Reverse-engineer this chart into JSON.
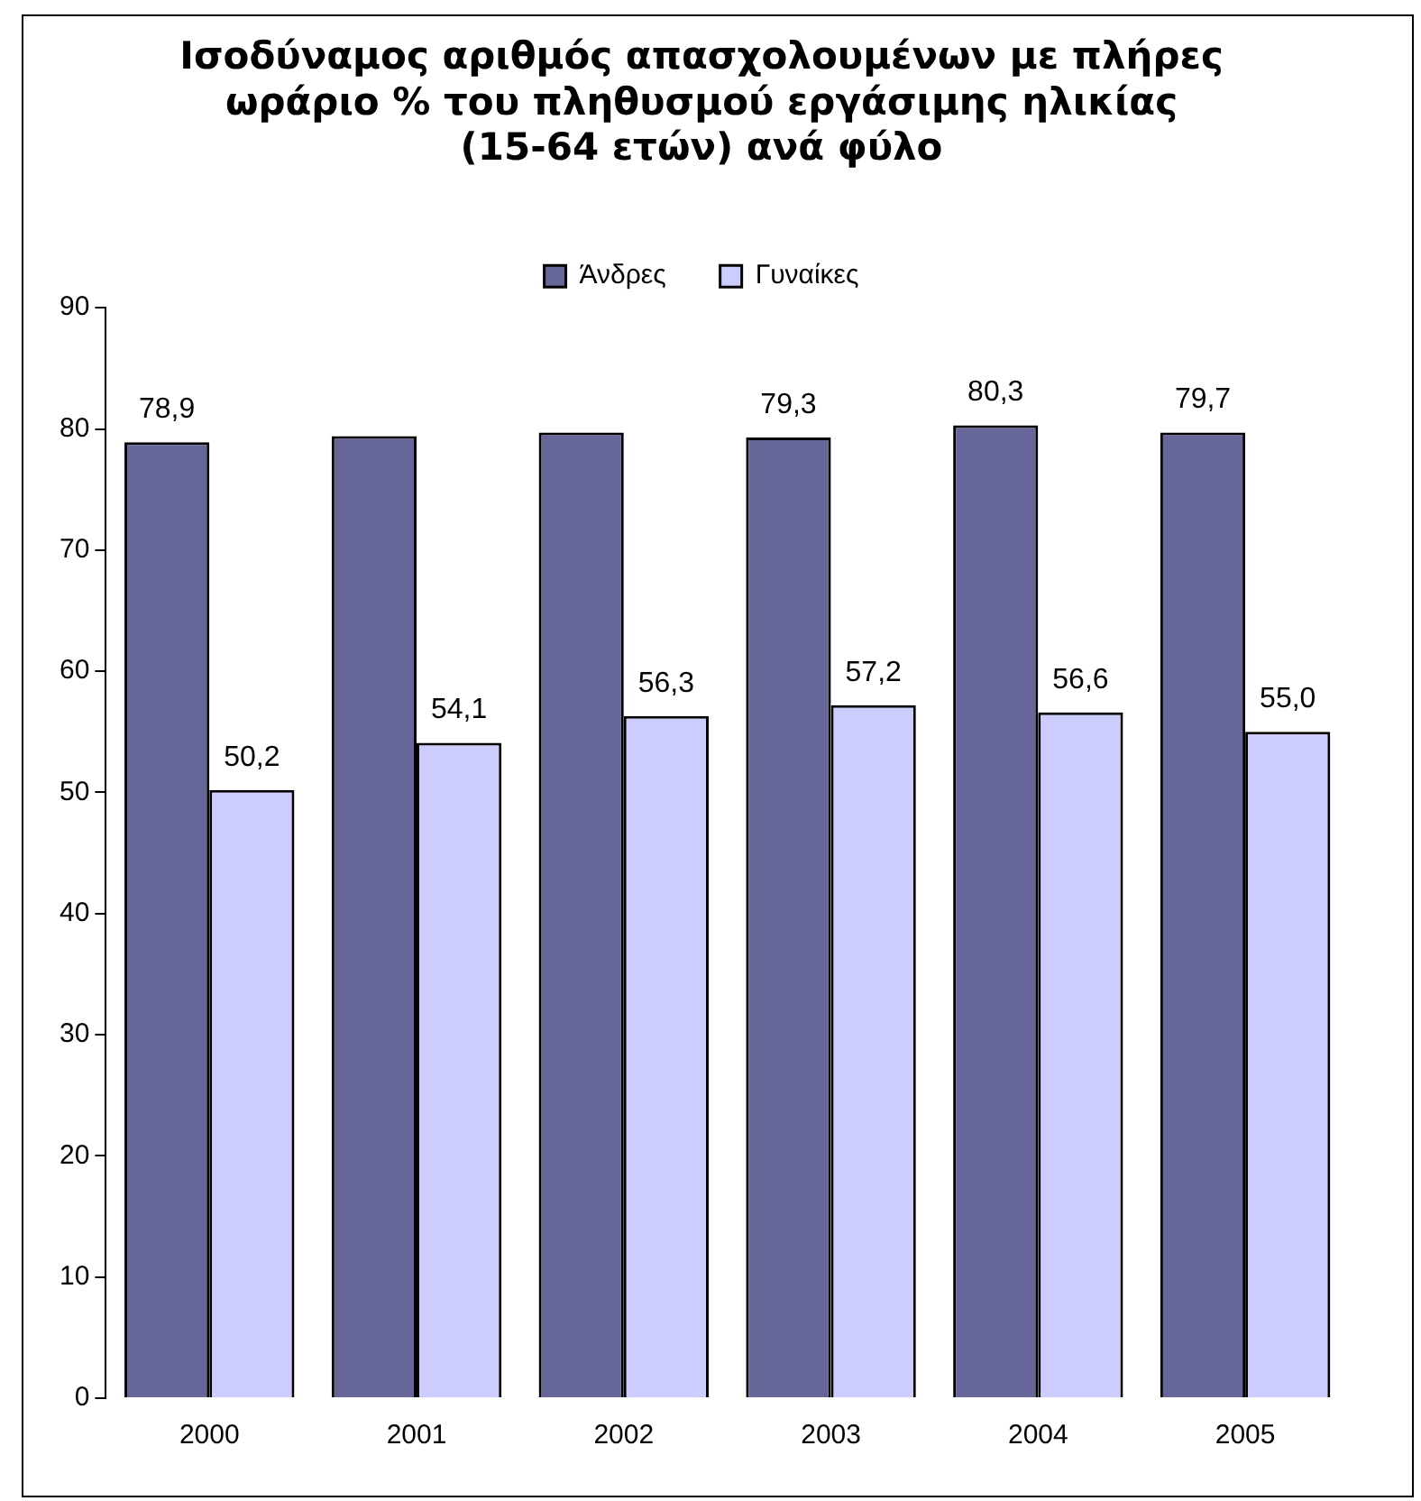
{
  "chart_data": {
    "type": "bar",
    "title": [
      "Ισοδύναμος αριθμός απασχολουμένων με πλήρες",
      "ωράριο % του πληθυσμού εργάσιμης ηλικίας",
      "(15-64 ετών) ανά φύλο"
    ],
    "categories": [
      "2000",
      "2001",
      "2002",
      "2003",
      "2004",
      "2005"
    ],
    "series": [
      {
        "name": "Άνδρες",
        "color": "#666699",
        "values": [
          78.9,
          79.4,
          79.7,
          79.3,
          80.3,
          79.7
        ],
        "value_labels": [
          "78,9",
          null,
          null,
          "79,3",
          "80,3",
          "79,7"
        ]
      },
      {
        "name": "Γυναίκες",
        "color": "#ccccff",
        "values": [
          50.2,
          54.1,
          56.3,
          57.2,
          56.6,
          55.0
        ],
        "value_labels": [
          "50,2",
          "54,1",
          "56,3",
          "57,2",
          "56,6",
          "55,0"
        ]
      }
    ],
    "ylim": [
      0,
      90
    ],
    "yticks": [
      0,
      10,
      20,
      30,
      40,
      50,
      60,
      70,
      80,
      90
    ],
    "grid": false,
    "legend": "top"
  }
}
